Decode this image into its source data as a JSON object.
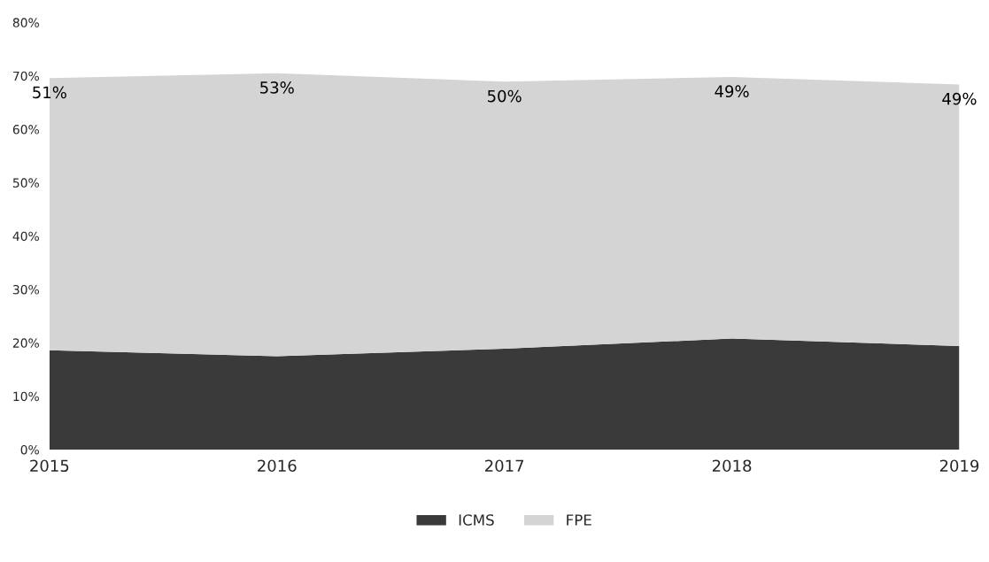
{
  "chart_data": {
    "type": "area",
    "stacked": true,
    "categories": [
      "2015",
      "2016",
      "2017",
      "2018",
      "2019"
    ],
    "series": [
      {
        "name": "ICMS",
        "color": "#3a3a3a",
        "values": [
          18.6,
          17.5,
          18.9,
          20.8,
          19.4
        ]
      },
      {
        "name": "FPE",
        "color": "#d4d4d4",
        "values": [
          51,
          53,
          50,
          49,
          49
        ],
        "value_labels": [
          "51%",
          "53%",
          "50%",
          "49%",
          "49%"
        ]
      }
    ],
    "ylim": [
      0,
      80
    ],
    "yticks": [
      {
        "value": 0,
        "label": "0%"
      },
      {
        "value": 10,
        "label": "10%"
      },
      {
        "value": 20,
        "label": "20%"
      },
      {
        "value": 30,
        "label": "30%"
      },
      {
        "value": 40,
        "label": "40%"
      },
      {
        "value": 50,
        "label": "50%"
      },
      {
        "value": 60,
        "label": "60%"
      },
      {
        "value": 70,
        "label": "70%"
      },
      {
        "value": 80,
        "label": "80%"
      }
    ],
    "grid": false,
    "legend": "bottom"
  }
}
